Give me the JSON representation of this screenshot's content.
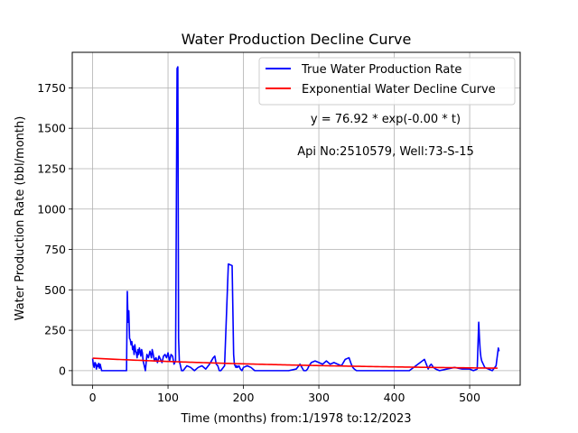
{
  "chart_data": {
    "type": "line",
    "title": "Water Production Decline Curve",
    "xlabel": "Time (months) from:1/1978 to:12/2023",
    "ylabel": "Water Production Rate (bbl/month)",
    "xlim": [
      -27,
      567
    ],
    "ylim": [
      -90,
      1970
    ],
    "xticks": [
      0,
      100,
      200,
      300,
      400,
      500
    ],
    "yticks": [
      0,
      250,
      500,
      750,
      1000,
      1250,
      1500,
      1750
    ],
    "grid": true,
    "legend_position": "top-right",
    "annotations": [
      "y = 76.92 * exp(-0.00 * t)",
      "Api No:2510579, Well:73-S-15"
    ],
    "series": [
      {
        "name": "True Water Production Rate",
        "color": "#0000ff",
        "x": [
          0,
          1,
          2,
          3,
          4,
          5,
          6,
          7,
          8,
          9,
          10,
          11,
          12,
          20,
          30,
          40,
          44,
          45,
          46,
          47,
          48,
          49,
          50,
          51,
          52,
          53,
          54,
          55,
          56,
          57,
          58,
          59,
          60,
          61,
          62,
          63,
          64,
          65,
          66,
          67,
          68,
          69,
          70,
          72,
          74,
          76,
          78,
          79,
          80,
          82,
          84,
          86,
          88,
          90,
          92,
          94,
          96,
          98,
          100,
          102,
          104,
          106,
          108,
          110,
          112,
          113,
          114,
          115,
          116,
          117,
          118,
          120,
          125,
          130,
          135,
          140,
          145,
          150,
          155,
          160,
          162,
          164,
          166,
          168,
          170,
          175,
          180,
          185,
          187,
          188,
          189,
          190,
          191,
          192,
          194,
          196,
          198,
          200,
          205,
          210,
          215,
          220,
          225,
          230,
          240,
          250,
          260,
          270,
          275,
          280,
          283,
          285,
          287,
          290,
          295,
          300,
          305,
          310,
          315,
          320,
          325,
          330,
          335,
          340,
          343,
          345,
          347,
          350,
          355,
          360,
          380,
          400,
          420,
          440,
          445,
          447,
          449,
          452,
          455,
          460,
          470,
          480,
          490,
          500,
          505,
          510,
          512,
          513,
          514,
          515,
          516,
          518,
          520,
          525,
          530,
          535,
          538,
          539
        ],
        "y": [
          75,
          35,
          20,
          50,
          45,
          10,
          35,
          25,
          45,
          15,
          40,
          20,
          0,
          0,
          0,
          0,
          0,
          0,
          490,
          300,
          370,
          200,
          190,
          160,
          180,
          130,
          150,
          100,
          160,
          120,
          110,
          80,
          130,
          100,
          140,
          120,
          90,
          130,
          110,
          60,
          40,
          20,
          0,
          100,
          80,
          120,
          80,
          130,
          110,
          60,
          80,
          50,
          90,
          70,
          50,
          90,
          100,
          80,
          110,
          60,
          100,
          90,
          40,
          60,
          1870,
          1880,
          200,
          60,
          40,
          20,
          0,
          0,
          30,
          20,
          0,
          20,
          30,
          10,
          40,
          80,
          90,
          40,
          30,
          0,
          0,
          30,
          660,
          650,
          100,
          40,
          30,
          20,
          30,
          20,
          30,
          10,
          0,
          20,
          30,
          20,
          0,
          0,
          0,
          0,
          0,
          0,
          0,
          10,
          40,
          0,
          0,
          10,
          30,
          50,
          60,
          50,
          40,
          60,
          40,
          50,
          40,
          30,
          70,
          80,
          40,
          20,
          10,
          0,
          0,
          0,
          0,
          0,
          0,
          70,
          10,
          30,
          40,
          20,
          10,
          0,
          10,
          20,
          10,
          10,
          0,
          10,
          300,
          200,
          120,
          80,
          60,
          40,
          20,
          10,
          0,
          30,
          140,
          120
        ]
      },
      {
        "name": "Exponential Water Decline Curve",
        "color": "#ff0000",
        "a": 76.92,
        "b": 0.003,
        "x_range": [
          0,
          539
        ]
      }
    ]
  }
}
